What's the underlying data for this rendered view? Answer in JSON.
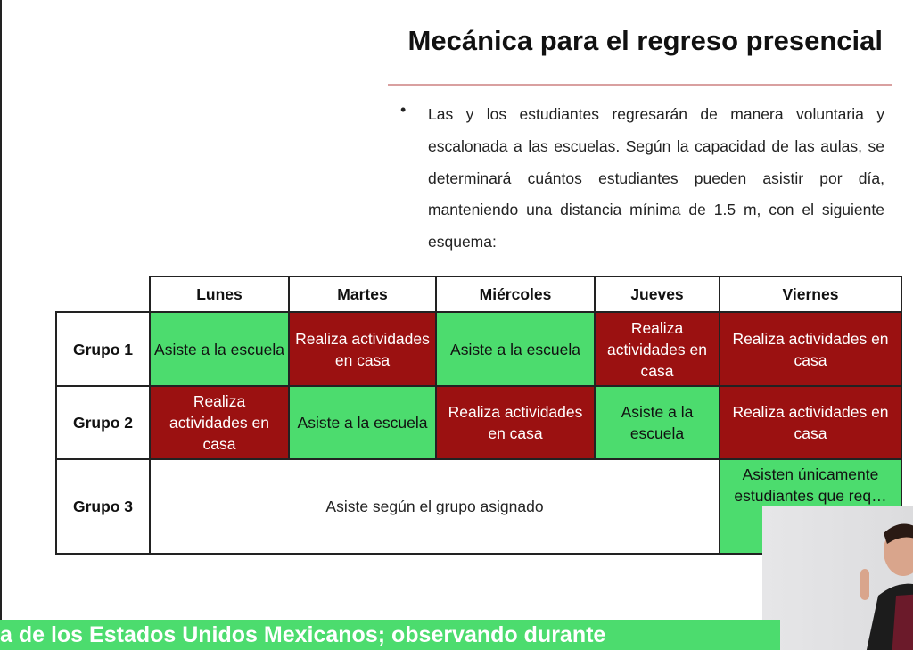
{
  "slide": {
    "title": "Mecánica para el regreso presencial",
    "bullet_symbol": "•",
    "paragraph": "Las y los estudiantes regresarán de manera voluntaria y escalonada a las escuelas. Según la capacidad de las aulas, se determinará cuántos estudiantes pueden asistir por día, manteniendo una distancia mínima de 1.5 m, con el siguiente esquema:"
  },
  "schedule": {
    "days": [
      "Lunes",
      "Martes",
      "Miércoles",
      "Jueves",
      "Viernes"
    ],
    "groups": [
      {
        "label": "Grupo 1",
        "cells": [
          {
            "text": "Asiste a la escuela",
            "status": "attend"
          },
          {
            "text": "Realiza actividades en casa",
            "status": "home"
          },
          {
            "text": "Asiste a la escuela",
            "status": "attend"
          },
          {
            "text": "Realiza actividades en casa",
            "status": "home"
          },
          {
            "text": "Realiza actividades en casa",
            "status": "home"
          }
        ]
      },
      {
        "label": "Grupo 2",
        "cells": [
          {
            "text": "Realiza actividades en casa",
            "status": "home"
          },
          {
            "text": "Asiste a la escuela",
            "status": "attend"
          },
          {
            "text": "Realiza actividades en casa",
            "status": "home"
          },
          {
            "text": "Asiste a la escuela",
            "status": "attend"
          },
          {
            "text": "Realiza actividades en casa",
            "status": "home"
          }
        ]
      },
      {
        "label": "Grupo 3",
        "span_text": "Asiste según el grupo asignado",
        "friday_text": "Asisten únicamente estudiantes que req… re…"
      }
    ],
    "colors": {
      "attend": "#4cdc6e",
      "home": "#9b1111"
    }
  },
  "banner": {
    "text": "a de los Estados Unidos Mexicanos; observando durante",
    "color": "#4cdc6e"
  },
  "video_inset": {
    "content": "sign-language-interpreter"
  }
}
